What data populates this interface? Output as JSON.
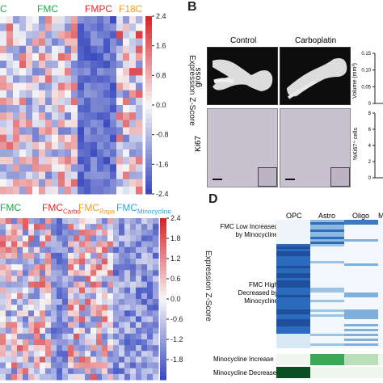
{
  "panelA": {
    "groups": [
      {
        "label": "C",
        "color": "#1aa84a"
      },
      {
        "label": "FMC",
        "color": "#1aa84a"
      },
      {
        "label": "FMPC",
        "color": "#e8262a"
      },
      {
        "label": "F18C",
        "color": "#f59b20"
      }
    ],
    "colorbar_label": "Expression Z-Score"
  },
  "panelB": {
    "letter": "B",
    "conditions": [
      "Control",
      "Carboplatin"
    ],
    "row_labels": [
      "gross",
      "Ki67"
    ],
    "volume_axis": {
      "label": "Volume (mm³)",
      "ticks": [
        "0.15",
        "0.10",
        "0.05",
        "0"
      ]
    },
    "ki67_axis": {
      "label": "%Ki67⁺ cells",
      "ticks": [
        "8",
        "6",
        "4",
        "2",
        "0"
      ]
    }
  },
  "panelC": {
    "groups": [
      {
        "label": "FMC",
        "sub": "",
        "color": "#1aa84a"
      },
      {
        "label": "FMC",
        "sub": "Carbo",
        "color": "#e8262a"
      },
      {
        "label": "FMC",
        "sub": "Rapa",
        "color": "#f59b20"
      },
      {
        "label": "FMC",
        "sub": "Minocycline",
        "color": "#2aa6d8"
      }
    ],
    "colorbar_label": "Expression Z-Score"
  },
  "panelD": {
    "letter": "D",
    "columns": [
      "OPC",
      "Astro",
      "Oligo",
      "M"
    ],
    "row_labels": [
      "FMC Low Increased by Minocycline",
      "FMC High Decreased by Minocycline",
      "Minocycline Increase",
      "Minocycline Decrease"
    ]
  },
  "chart_data": [
    {
      "type": "heatmap",
      "title": "",
      "column_groups": [
        "C",
        "FMC",
        "FMPC",
        "F18C"
      ],
      "colorbar": {
        "label": "Expression Z-Score",
        "ticks": [
          2.4,
          1.6,
          0.8,
          0.0,
          -0.8,
          -1.6,
          -2.4
        ],
        "low_color": "#3b4cc0",
        "mid_color": "#f7f7f7",
        "high_color": "#d9252a"
      },
      "rows": 24,
      "cols": 22
    },
    {
      "type": "bar",
      "title": "",
      "ylabel": "Volume (mm³)",
      "yticks": [
        0.15,
        0.1,
        0.05,
        0
      ]
    },
    {
      "type": "bar",
      "title": "",
      "ylabel": "%Ki67⁺ cells",
      "yticks": [
        8,
        6,
        4,
        2,
        0
      ]
    },
    {
      "type": "heatmap",
      "title": "",
      "column_groups": [
        "FMC",
        "FMC Carbo",
        "FMC Rapa",
        "FMC Minocycline"
      ],
      "colorbar": {
        "label": "Expression Z-Score",
        "ticks": [
          2.4,
          1.8,
          1.2,
          0.6,
          0.0,
          -0.6,
          -1.2,
          -1.8
        ],
        "low_color": "#3b4cc0",
        "mid_color": "#f7f7f7",
        "high_color": "#d9252a"
      },
      "rows": 28,
      "cols": 28
    },
    {
      "type": "heatmap",
      "title": "",
      "columns": [
        "OPC",
        "Astro",
        "Oligo",
        "M"
      ],
      "row_groups": [
        "FMC Low Increased by Minocycline",
        "FMC High Decreased by Minocycline",
        "Minocycline Increase",
        "Minocycline Decrease"
      ]
    }
  ]
}
